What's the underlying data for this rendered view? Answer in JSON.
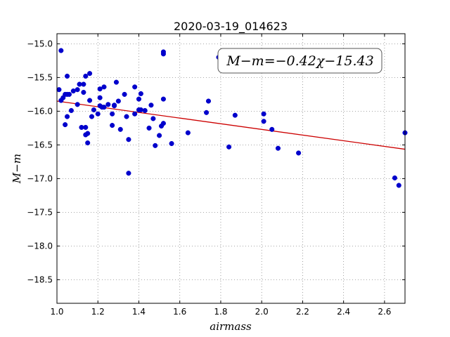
{
  "chart_data": {
    "type": "scatter",
    "title": "2020-03-19_014623",
    "xlabel": "airmass",
    "ylabel": "M−m",
    "xlim": [
      1.0,
      2.7
    ],
    "ylim": [
      -18.85,
      -14.85
    ],
    "xticks": [
      1.0,
      1.2,
      1.4,
      1.6,
      1.8,
      2.0,
      2.2,
      2.4,
      2.6
    ],
    "xtick_labels": [
      "1.0",
      "1.2",
      "1.4",
      "1.6",
      "1.8",
      "2.0",
      "2.2",
      "2.4",
      "2.6"
    ],
    "yticks": [
      -15.0,
      -15.5,
      -16.0,
      -16.5,
      -17.0,
      -17.5,
      -18.0,
      -18.5
    ],
    "ytick_labels": [
      "−15.0",
      "−15.5",
      "−16.0",
      "−16.5",
      "−17.0",
      "−17.5",
      "−18.0",
      "−18.5"
    ],
    "grid": true,
    "annotation": "M−m=−0.42χ−15.43",
    "annotation_position": "top-right",
    "fit": {
      "slope": -0.42,
      "intercept": -15.43
    },
    "colors": {
      "points": "#0000cc",
      "fit_line": "#cc0000",
      "grid": "#888888"
    },
    "series": [
      {
        "x": [
          1.01,
          1.02,
          1.02,
          1.03,
          1.04,
          1.04,
          1.05,
          1.05,
          1.05,
          1.06,
          1.07,
          1.08,
          1.1,
          1.1,
          1.11,
          1.12,
          1.13,
          1.13,
          1.14,
          1.14,
          1.14,
          1.15,
          1.15,
          1.16,
          1.16,
          1.17,
          1.18,
          1.2,
          1.21,
          1.21,
          1.21,
          1.22,
          1.23,
          1.23,
          1.25,
          1.27,
          1.27,
          1.28,
          1.28,
          1.29,
          1.3,
          1.31,
          1.33,
          1.34,
          1.35,
          1.35,
          1.38,
          1.38,
          1.4,
          1.4,
          1.41,
          1.41,
          1.43,
          1.45,
          1.46,
          1.47,
          1.48,
          1.5,
          1.51,
          1.52,
          1.52,
          1.52,
          1.52,
          1.56,
          1.64,
          1.73,
          1.74,
          1.79,
          1.84,
          1.87,
          2.01,
          2.01,
          2.05,
          2.08,
          2.18,
          2.65,
          2.67,
          2.7
        ],
        "y": [
          -15.68,
          -15.1,
          -15.84,
          -15.8,
          -16.2,
          -15.75,
          -15.48,
          -15.75,
          -16.08,
          -15.75,
          -15.99,
          -15.7,
          -15.68,
          -15.9,
          -15.6,
          -16.24,
          -15.72,
          -15.6,
          -15.48,
          -16.24,
          -16.35,
          -16.47,
          -16.33,
          -15.84,
          -15.44,
          -16.08,
          -15.98,
          -16.04,
          -15.67,
          -15.92,
          -15.8,
          -15.94,
          -15.64,
          -15.94,
          -15.9,
          -16.04,
          -16.21,
          -15.91,
          -15.92,
          -15.57,
          -15.85,
          -16.27,
          -15.75,
          -16.08,
          -16.92,
          -16.42,
          -15.64,
          -16.04,
          -15.82,
          -15.98,
          -15.74,
          -15.98,
          -15.99,
          -16.25,
          -15.91,
          -16.11,
          -16.51,
          -16.36,
          -16.22,
          -15.12,
          -15.15,
          -16.18,
          -15.82,
          -16.48,
          -16.32,
          -16.02,
          -15.85,
          -15.2,
          -16.53,
          -16.06,
          -16.04,
          -16.15,
          -16.27,
          -16.55,
          -16.62,
          -16.99,
          -17.1,
          -16.32
        ]
      }
    ]
  }
}
